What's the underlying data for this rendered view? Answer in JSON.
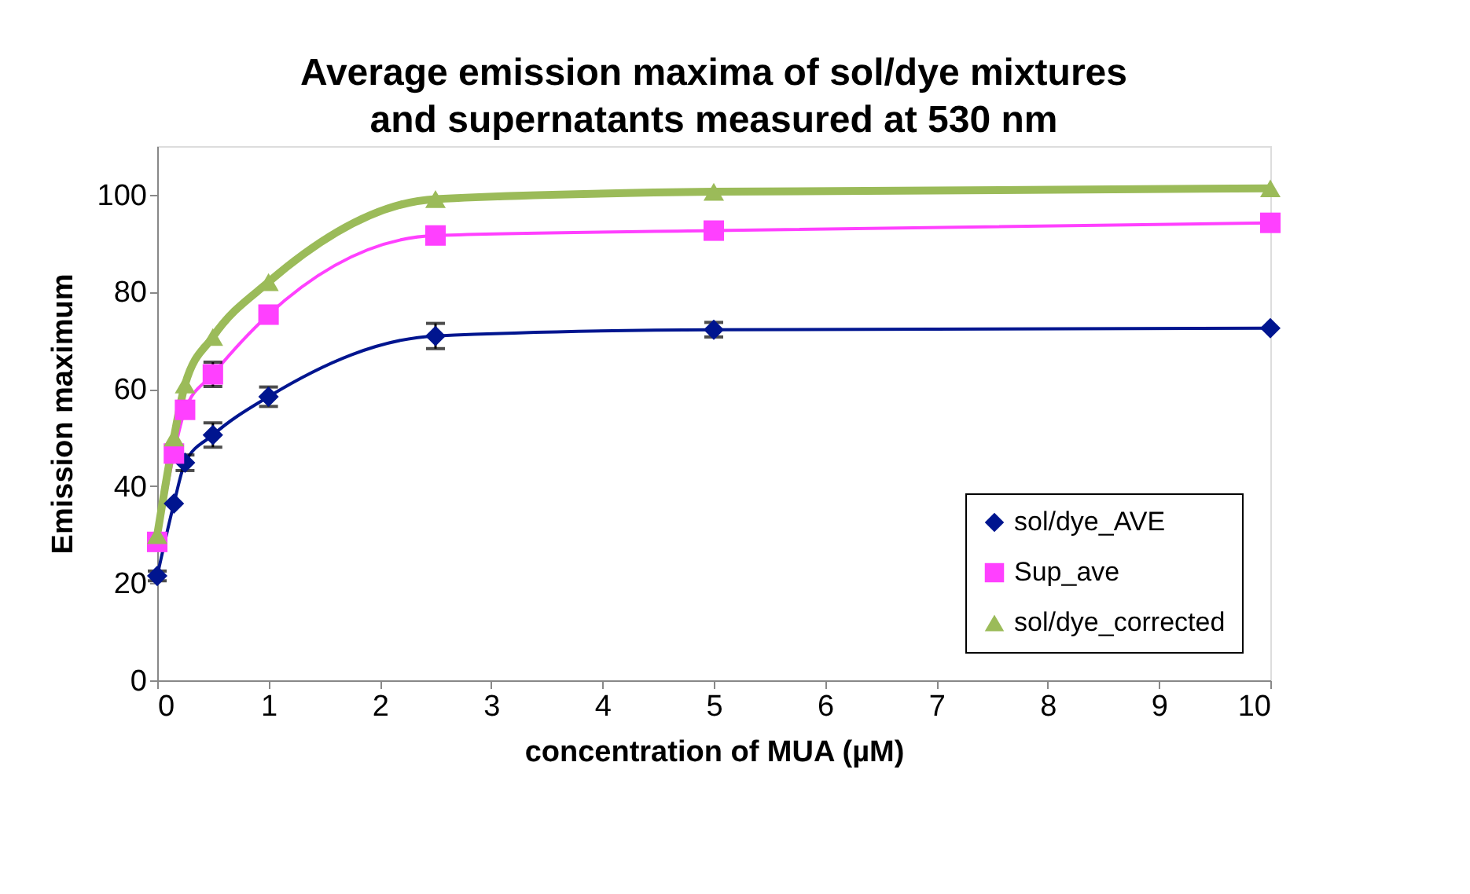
{
  "chart_data": {
    "type": "line",
    "title": "Average emission maxima of sol/dye mixtures and supernatants measured at 530 nm",
    "xlabel": "concentration of MUA (µM)",
    "ylabel": "Emission maximum",
    "xlim": [
      0,
      10
    ],
    "xticks": [
      0,
      1,
      2,
      3,
      4,
      5,
      6,
      7,
      8,
      9,
      10
    ],
    "ylim": [
      0,
      110
    ],
    "yticks": [
      0,
      20,
      40,
      60,
      80,
      100
    ],
    "grid": false,
    "legend": "bottom right",
    "series": [
      {
        "name": "sol/dye_AVE",
        "color": "#00158f",
        "marker": "diamond",
        "x": [
          0,
          0.15,
          0.25,
          0.5,
          1,
          2.5,
          5,
          10
        ],
        "values": [
          21.5,
          36.4,
          44.8,
          50.5,
          58.4,
          70.9,
          72.2,
          72.5
        ],
        "errors": [
          1,
          null,
          1.6,
          2.5,
          2,
          2.6,
          1.5,
          null
        ]
      },
      {
        "name": "Sup_ave",
        "color": "#ff40ff",
        "marker": "square",
        "x": [
          0,
          0.15,
          0.25,
          0.5,
          1,
          2.5,
          5,
          10
        ],
        "values": [
          28.5,
          46.7,
          55.7,
          63,
          75.3,
          91.6,
          92.6,
          94.2
        ],
        "errors": [
          null,
          null,
          null,
          2.5,
          null,
          null,
          null,
          null
        ]
      },
      {
        "name": "sol/dye_corrected",
        "color": "#9bbb59",
        "marker": "triangle",
        "x": [
          0,
          0.15,
          0.25,
          0.5,
          1,
          2.5,
          5,
          10
        ],
        "values": [
          29.9,
          50,
          60.9,
          70.7,
          82,
          99.1,
          100.6,
          101.3
        ]
      }
    ]
  }
}
